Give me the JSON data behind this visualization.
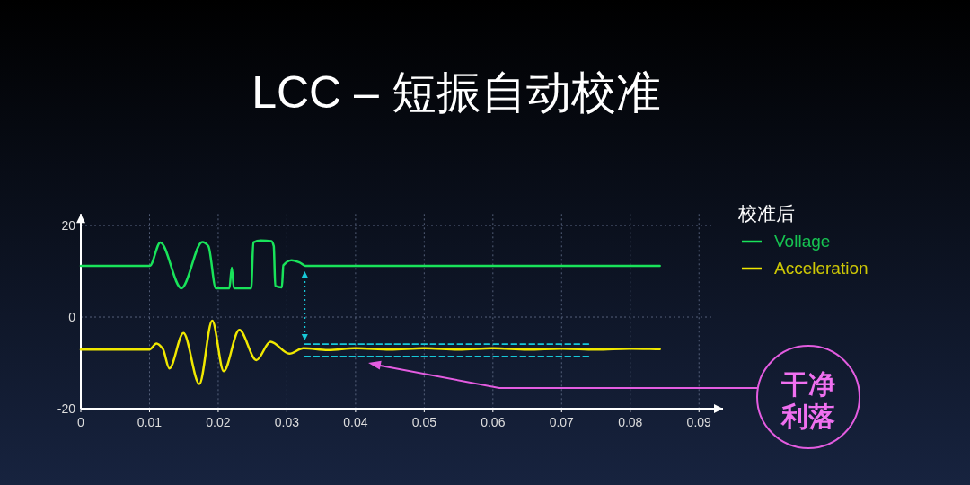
{
  "chart_data": {
    "type": "line",
    "title": "LCC – 短振自动校准",
    "legend_title": "校准后",
    "legend": "right",
    "grid": true,
    "line_style": "solid",
    "xlim": [
      0,
      0.0935
    ],
    "ylim": [
      -20,
      22.5
    ],
    "xticks": [
      0,
      0.01,
      0.02,
      0.03,
      0.04,
      0.05,
      0.06,
      0.07,
      0.08,
      0.09
    ],
    "yticks": [
      -20,
      0,
      20
    ],
    "series": [
      {
        "name": "Vollage",
        "color": "#19e35a",
        "x": [
          0,
          0.01005,
          0.01157,
          0.01464,
          0.01769,
          0.01857,
          0.01966,
          0.02163,
          0.02198,
          0.02228,
          0.02481,
          0.02512,
          0.02621,
          0.02774,
          0.02809,
          0.02831,
          0.02927,
          0.02949,
          0.03067,
          0.03189,
          0.03268,
          0.0843
        ],
        "values": [
          11.2,
          11.2,
          16.3,
          6.3,
          16.4,
          15.5,
          6.3,
          6.3,
          10.8,
          6.3,
          6.3,
          16.3,
          16.7,
          16.6,
          15.5,
          6.8,
          6.5,
          11.3,
          12.4,
          11.9,
          11.2,
          11.2
        ]
      },
      {
        "name": "Acceleration",
        "color": "#f0e800",
        "x": [
          0,
          0.00996,
          0.01101,
          0.01193,
          0.01289,
          0.01494,
          0.01726,
          0.01913,
          0.0208,
          0.02307,
          0.02556,
          0.02761,
          0.03037,
          0.03241,
          0.036,
          0.04,
          0.045,
          0.05,
          0.055,
          0.06,
          0.065,
          0.07,
          0.075,
          0.08,
          0.0843
        ],
        "values": [
          -7.1,
          -7.1,
          -5.8,
          -6.9,
          -11.2,
          -3.5,
          -14.6,
          -0.8,
          -11.8,
          -2.8,
          -9.4,
          -5.4,
          -8.0,
          -6.8,
          -7.2,
          -6.8,
          -7.1,
          -6.8,
          -7.1,
          -6.8,
          -7.1,
          -6.9,
          -7.1,
          -6.9,
          -7.0
        ]
      },
      {
        "color": "#17c8d8",
        "line_style": "dashed",
        "x": [
          0.0326,
          0.0742
        ],
        "values": [
          -5.9,
          -5.9
        ]
      },
      {
        "color": "#17c8d8",
        "line_style": "dashed",
        "x": [
          0.0326,
          0.0742
        ],
        "values": [
          -8.6,
          -8.6
        ]
      }
    ],
    "annotations": [
      "干净利落"
    ]
  }
}
